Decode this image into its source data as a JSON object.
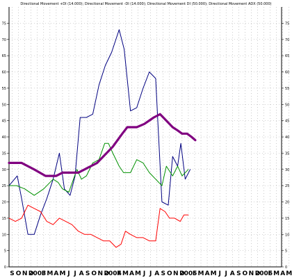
{
  "chart_data": {
    "type": "line",
    "title": "Directional Movement +DI (14.000); Directional Movement -DI (14.000); Directional Movement DI (50.000); Directional Movement ADX (50.000)",
    "ylim": [
      0,
      80
    ],
    "yticks": [
      0,
      5,
      10,
      15,
      20,
      25,
      30,
      35,
      40,
      45,
      50,
      55,
      60,
      65,
      70,
      75
    ],
    "grid": true,
    "x_tick_labels": [
      "S",
      "O",
      "N",
      "D",
      "2003",
      "F",
      "M",
      "A",
      "M",
      "J",
      "J",
      "A",
      "S",
      "O",
      "N",
      "D",
      "2004",
      "F",
      "M",
      "A",
      "M",
      "J",
      "J",
      "A",
      "S",
      "O",
      "N",
      "D",
      "2005",
      "F",
      "M",
      "A",
      "M",
      "J",
      "J",
      "A",
      "S",
      "O",
      "N",
      "D",
      "2006",
      "F",
      "M",
      "A",
      "M"
    ],
    "x": [
      0.5,
      1.5,
      2.5,
      3.5,
      4.5,
      5.5,
      6.5,
      7.5,
      8.5,
      9.5,
      10.5,
      11.5,
      12.5,
      13.5,
      14.5,
      15.5,
      16.5,
      17.5,
      18.5,
      19.5,
      20.5,
      21.5,
      22.5,
      23.5,
      24.5,
      25.5,
      26.5,
      27.5,
      28.5,
      29.5,
      30.5,
      31.5,
      32.5,
      33.5,
      34.5,
      35.5,
      36.5,
      37.5,
      38.5,
      39.5,
      40.5,
      41.5,
      42.5,
      43.5,
      44.5
    ],
    "series": [
      {
        "color": "#000080",
        "width": 1,
        "points": [
          [
            0,
            25
          ],
          [
            1.3,
            28
          ],
          [
            2,
            21
          ],
          [
            3,
            10
          ],
          [
            4,
            10
          ],
          [
            5,
            16
          ],
          [
            6,
            21
          ],
          [
            7,
            27
          ],
          [
            8,
            35
          ],
          [
            8.8,
            24
          ],
          [
            9.7,
            22
          ],
          [
            10.5,
            28
          ],
          [
            11.3,
            46
          ],
          [
            12.3,
            46
          ],
          [
            13.3,
            47
          ],
          [
            14.3,
            56
          ],
          [
            15.3,
            62
          ],
          [
            16.3,
            66
          ],
          [
            17.5,
            73
          ],
          [
            18.3,
            67
          ],
          [
            19.3,
            48
          ],
          [
            20.3,
            49
          ],
          [
            21.3,
            55
          ],
          [
            22.3,
            60
          ],
          [
            23.3,
            58
          ],
          [
            24.3,
            20
          ],
          [
            25.3,
            19
          ],
          [
            26,
            34
          ],
          [
            26.8,
            31
          ],
          [
            27.3,
            38
          ],
          [
            28,
            27
          ],
          [
            28.8,
            30
          ]
        ]
      },
      {
        "color": "#009000",
        "width": 1,
        "points": [
          [
            0,
            25
          ],
          [
            1.2,
            25
          ],
          [
            2.5,
            24
          ],
          [
            4,
            22
          ],
          [
            5.5,
            24
          ],
          [
            7,
            27
          ],
          [
            7.8,
            26
          ],
          [
            8.5,
            24
          ],
          [
            9.5,
            23
          ],
          [
            10.8,
            30
          ],
          [
            11.5,
            27
          ],
          [
            12.3,
            28
          ],
          [
            13.3,
            32
          ],
          [
            14.3,
            33
          ],
          [
            15.2,
            38
          ],
          [
            15.8,
            38
          ],
          [
            16.5,
            35
          ],
          [
            17.5,
            31
          ],
          [
            18.2,
            29
          ],
          [
            19.3,
            29
          ],
          [
            20.3,
            33
          ],
          [
            21.3,
            32
          ],
          [
            22.3,
            29
          ],
          [
            23.3,
            27
          ],
          [
            24.3,
            25
          ],
          [
            25,
            31
          ],
          [
            26,
            28
          ],
          [
            26.8,
            31
          ],
          [
            27.5,
            28
          ],
          [
            28.5,
            30
          ]
        ]
      },
      {
        "color": "#ff0000",
        "width": 1,
        "points": [
          [
            0,
            15
          ],
          [
            1,
            14
          ],
          [
            2,
            15
          ],
          [
            3,
            19
          ],
          [
            4,
            18
          ],
          [
            5,
            17
          ],
          [
            6,
            14
          ],
          [
            7,
            13
          ],
          [
            8,
            15
          ],
          [
            9,
            14
          ],
          [
            10,
            13
          ],
          [
            11,
            11
          ],
          [
            12,
            10
          ],
          [
            13,
            10
          ],
          [
            14,
            9
          ],
          [
            15,
            8
          ],
          [
            16,
            8
          ],
          [
            17,
            6
          ],
          [
            17.8,
            7
          ],
          [
            18.5,
            11
          ],
          [
            19.3,
            10
          ],
          [
            20.3,
            9
          ],
          [
            21.3,
            9
          ],
          [
            22.3,
            8
          ],
          [
            23.3,
            8
          ],
          [
            24,
            18
          ],
          [
            24.8,
            17
          ],
          [
            25.5,
            15
          ],
          [
            26.3,
            15
          ],
          [
            27.2,
            14
          ],
          [
            27.8,
            16
          ],
          [
            28.5,
            16
          ]
        ]
      },
      {
        "color": "#800080",
        "width": 3.2,
        "points": [
          [
            0,
            32
          ],
          [
            2,
            32
          ],
          [
            4,
            30
          ],
          [
            5.8,
            28
          ],
          [
            7.5,
            28
          ],
          [
            8.5,
            29
          ],
          [
            11,
            29
          ],
          [
            12,
            30
          ],
          [
            14,
            32
          ],
          [
            16.5,
            37
          ],
          [
            18,
            41
          ],
          [
            18.8,
            43
          ],
          [
            20.3,
            43
          ],
          [
            21.5,
            44
          ],
          [
            23,
            46
          ],
          [
            24,
            47
          ],
          [
            25,
            45
          ],
          [
            26,
            43
          ],
          [
            26.8,
            42
          ],
          [
            27.5,
            41
          ],
          [
            28.3,
            41
          ],
          [
            29,
            40
          ],
          [
            29.6,
            39
          ]
        ]
      }
    ]
  }
}
